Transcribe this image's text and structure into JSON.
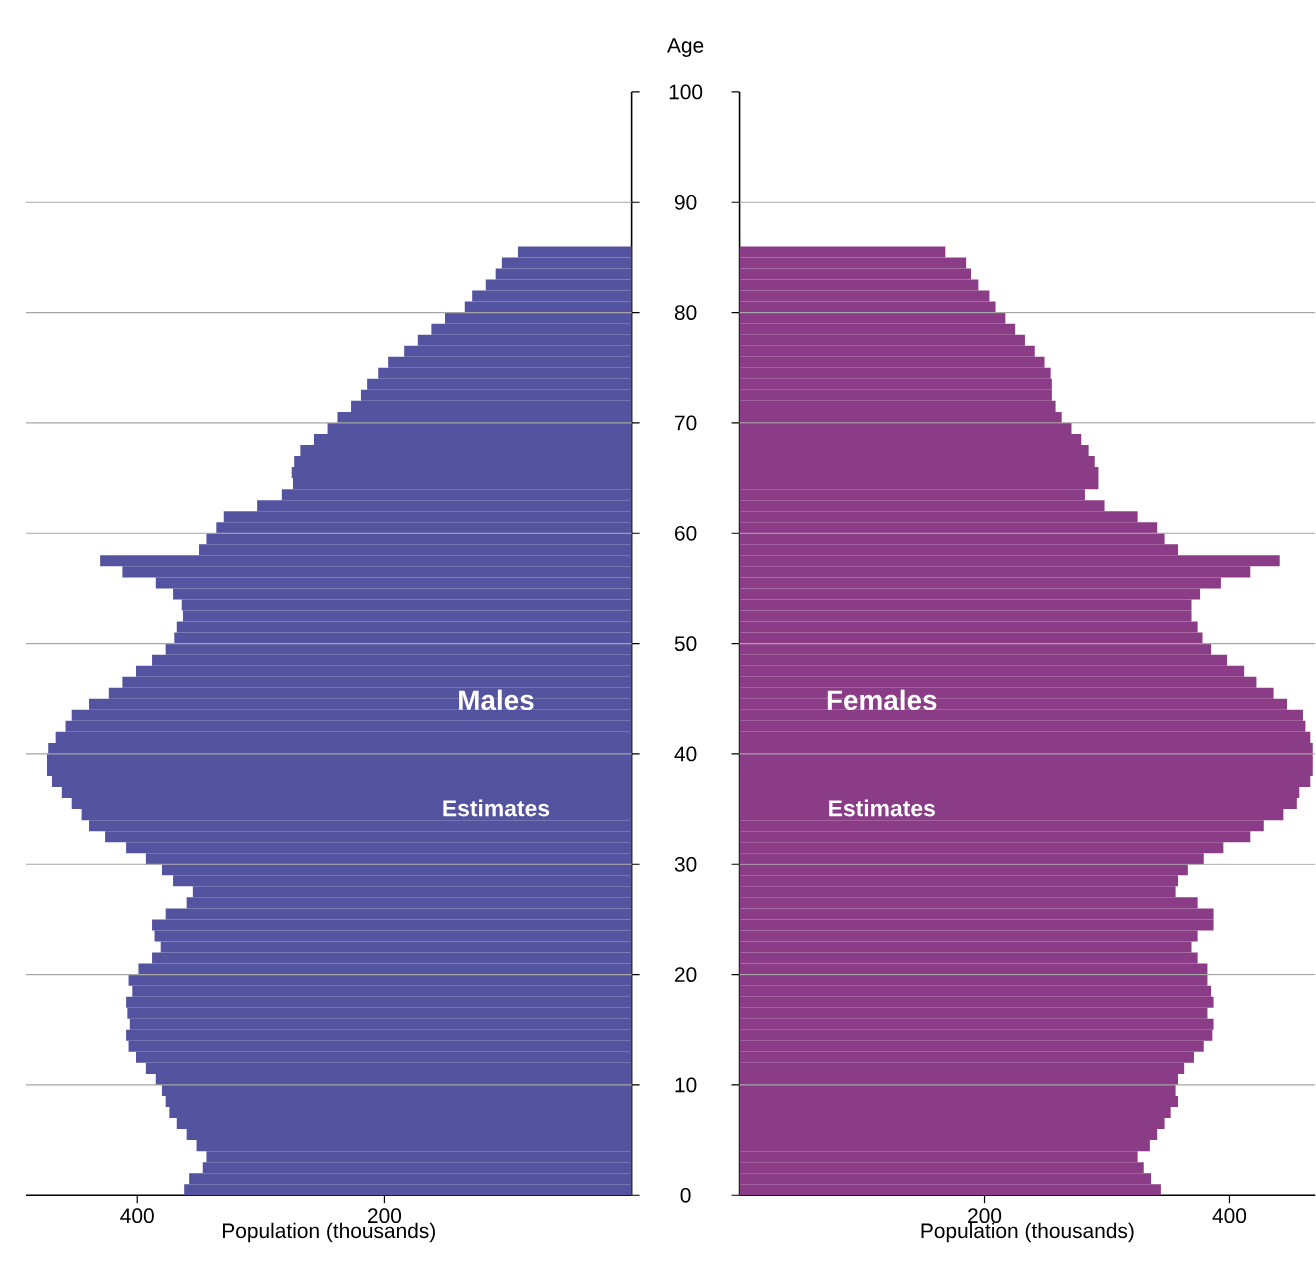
{
  "chart_data": [
    {
      "type": "bar",
      "orientation": "horizontal",
      "xlabel": "Population (thousands)",
      "annotations": [
        "Estimates"
      ],
      "grid": "y",
      "tick_labels": "x",
      "x": [
        0,
        1,
        2,
        3,
        4,
        5,
        6,
        7,
        8,
        9,
        10,
        11,
        12,
        13,
        14,
        15,
        16,
        17,
        18,
        19,
        20,
        21,
        22,
        23,
        24,
        25,
        26,
        27,
        28,
        29,
        30,
        31,
        32,
        33,
        34,
        35,
        36,
        37,
        38,
        39,
        40,
        41,
        42,
        43,
        44,
        45,
        46,
        47,
        48,
        49,
        50,
        51,
        52,
        53,
        54,
        55,
        56,
        57,
        58,
        59,
        60,
        61,
        62,
        63,
        64,
        65,
        66,
        67,
        68,
        69,
        70,
        71,
        72,
        73,
        74,
        75,
        76,
        77,
        78,
        79,
        80,
        81,
        82,
        83,
        84,
        85
      ],
      "series": [
        {
          "name": "Males",
          "color": "#5353a0",
          "values": [
            362,
            358,
            347,
            344,
            352,
            360,
            368,
            374,
            377,
            380,
            385,
            393,
            401,
            407,
            409,
            406,
            408,
            409,
            404,
            407,
            399,
            388,
            381,
            386,
            388,
            377,
            360,
            355,
            371,
            380,
            393,
            409,
            426,
            439,
            445,
            453,
            461,
            469,
            473,
            473,
            472,
            466,
            458,
            453,
            439,
            423,
            412,
            401,
            388,
            377,
            370,
            368,
            363,
            364,
            371,
            385,
            412,
            430,
            350,
            344,
            336,
            330,
            303,
            283,
            274,
            275,
            273,
            268,
            257,
            246,
            238,
            227,
            219,
            214,
            205,
            197,
            184,
            173,
            162,
            151,
            135,
            129,
            118,
            110,
            105,
            92
          ]
        }
      ],
      "xlim": [
        490,
        0
      ],
      "xticks": [
        400,
        200
      ],
      "ylim": [
        0,
        100
      ],
      "yticks": [
        0,
        10,
        20,
        30,
        40,
        50,
        60,
        70,
        80,
        90,
        100
      ]
    },
    {
      "type": "bar",
      "orientation": "horizontal",
      "xlabel": "Population (thousands)",
      "ylabel": "Age",
      "annotations": [
        "Estimates"
      ],
      "grid": "y",
      "x": [
        0,
        1,
        2,
        3,
        4,
        5,
        6,
        7,
        8,
        9,
        10,
        11,
        12,
        13,
        14,
        15,
        16,
        17,
        18,
        19,
        20,
        21,
        22,
        23,
        24,
        25,
        26,
        27,
        28,
        29,
        30,
        31,
        32,
        33,
        34,
        35,
        36,
        37,
        38,
        39,
        40,
        41,
        42,
        43,
        44,
        45,
        46,
        47,
        48,
        49,
        50,
        51,
        52,
        53,
        54,
        55,
        56,
        57,
        58,
        59,
        60,
        61,
        62,
        63,
        64,
        65,
        66,
        67,
        68,
        69,
        70,
        71,
        72,
        73,
        74,
        75,
        76,
        77,
        78,
        79,
        80,
        81,
        82,
        83,
        84,
        85
      ],
      "series": [
        {
          "name": "Females",
          "color": "#8b3c86",
          "values": [
            344,
            336,
            330,
            325,
            335,
            341,
            347,
            352,
            358,
            356,
            358,
            363,
            371,
            379,
            386,
            387,
            382,
            387,
            385,
            382,
            382,
            374,
            369,
            374,
            387,
            387,
            374,
            356,
            358,
            366,
            379,
            395,
            417,
            428,
            444,
            455,
            457,
            466,
            468,
            468,
            468,
            466,
            462,
            460,
            447,
            436,
            422,
            412,
            398,
            385,
            378,
            374,
            369,
            369,
            376,
            393,
            417,
            441,
            358,
            347,
            341,
            325,
            298,
            282,
            293,
            293,
            290,
            285,
            279,
            271,
            263,
            258,
            255,
            255,
            254,
            249,
            241,
            233,
            225,
            217,
            209,
            204,
            195,
            189,
            185,
            168
          ]
        }
      ],
      "xlim": [
        0,
        470
      ],
      "xticks": [
        200,
        400
      ],
      "ylim": [
        0,
        100
      ],
      "yticks": [
        0,
        10,
        20,
        30,
        40,
        50,
        60,
        70,
        80,
        90,
        100
      ]
    }
  ]
}
